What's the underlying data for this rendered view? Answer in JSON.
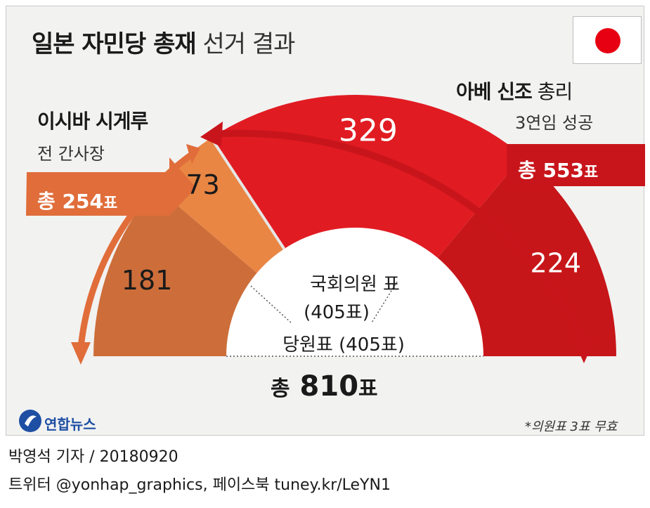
{
  "title": {
    "bold": "일본 자민당 총재",
    "light": "선거 결과"
  },
  "candidates": {
    "ishiba": {
      "name": "이시바 시게루",
      "sub": "전 간사장",
      "total_prefix": "총",
      "total_value": "254",
      "total_unit": "표"
    },
    "abe": {
      "name_bold": "아베 신조",
      "name_rest": "총리",
      "sub": "3연임 성공",
      "total_prefix": "총",
      "total_value": "553",
      "total_unit": "표"
    }
  },
  "chart_data": {
    "type": "pie",
    "layout": "semicircle",
    "inner_labels": {
      "parliament": "국회의원 표",
      "parliament_count": "(405표)",
      "party": "당원표 (405표)"
    },
    "grand_total": {
      "prefix": "총",
      "value": "810",
      "unit": "표"
    },
    "note": "*의원표 3표 무효",
    "slices": [
      {
        "label": "181",
        "value": 181,
        "candidate": "이시바 시게루",
        "group": "당원표",
        "color": "#cd6e3a"
      },
      {
        "label": "73",
        "value": 73,
        "candidate": "이시바 시게루",
        "group": "국회의원 표",
        "color": "#e98644"
      },
      {
        "label": "329",
        "value": 329,
        "candidate": "아베 신조",
        "group": "국회의원 표",
        "color": "#e11b22"
      },
      {
        "label": "224",
        "value": 224,
        "candidate": "아베 신조",
        "group": "당원표",
        "color": "#c71619"
      }
    ],
    "invalid_votes": 3
  },
  "colors": {
    "ishiba_arrow": "#e06d3a",
    "abe_arrow": "#c8151b",
    "flag_sun": "#e60012"
  },
  "logo": {
    "icon": "yonhap-logo-icon",
    "text": "연합뉴스"
  },
  "credits": {
    "line1": "박영석 기자 / 20180920",
    "line2": "트위터 @yonhap_graphics, 페이스북 tuney.kr/LeYN1"
  }
}
